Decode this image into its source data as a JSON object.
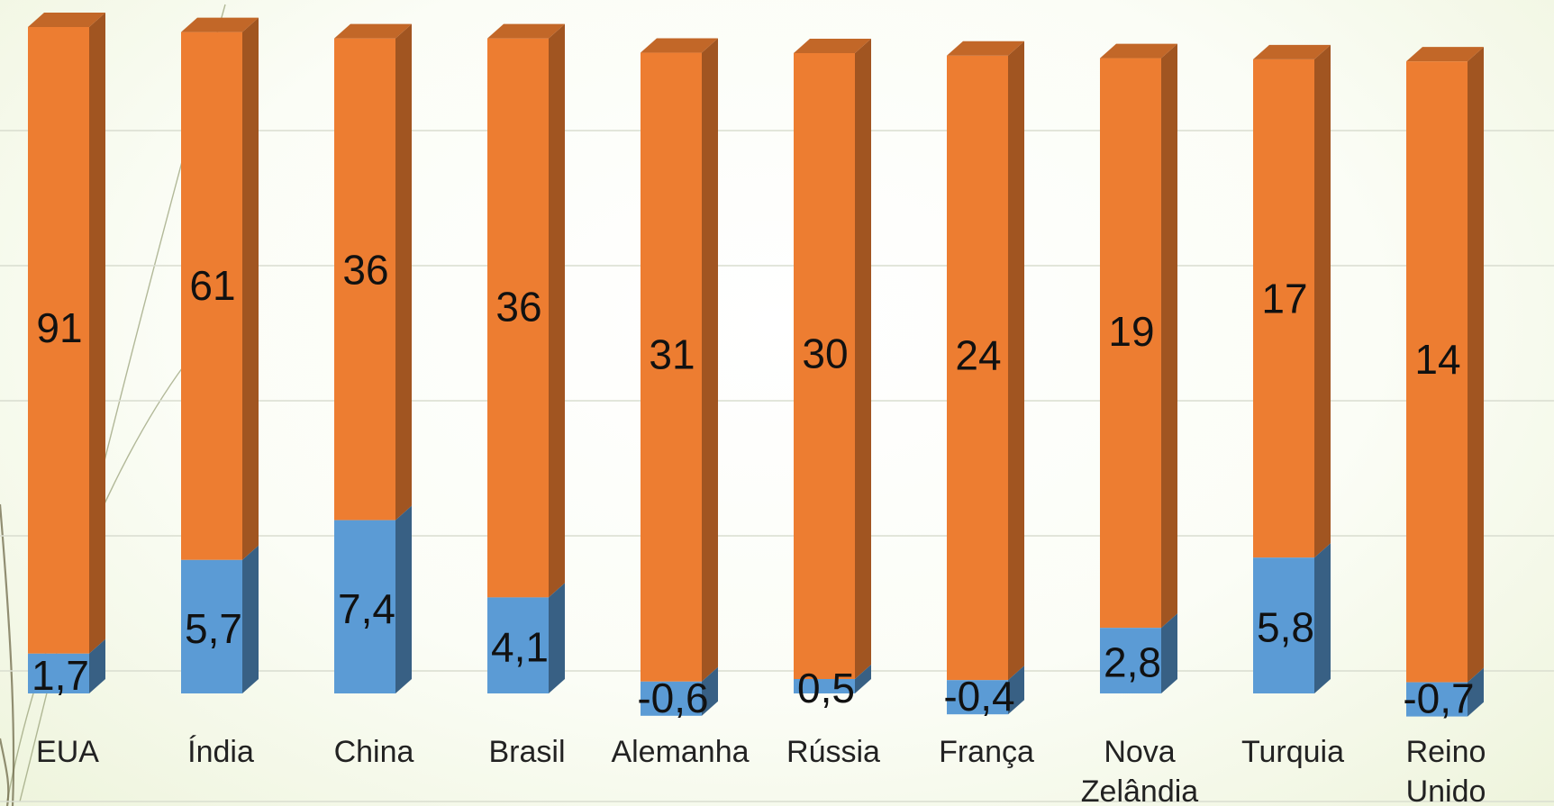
{
  "chart_data": {
    "type": "bar",
    "stacked": true,
    "style": "3d-column",
    "categories": [
      "EUA",
      "Índia",
      "China",
      "Brasil",
      "Alemanha",
      "Rússia",
      "França",
      "Nova Zelândia",
      "Turquia",
      "Reino Unido"
    ],
    "series": [
      {
        "values": [
          1.7,
          5.7,
          7.4,
          4.1,
          -0.6,
          0.5,
          -0.4,
          2.8,
          5.8,
          -0.7
        ],
        "labels": [
          "1,7",
          "5,7",
          "7,4",
          "4,1",
          "-0,6",
          "0,5",
          "-0,4",
          "2,8",
          "5,8",
          "-0,7"
        ],
        "color": "#5b9bd5"
      },
      {
        "values": [
          91,
          61,
          36,
          36,
          31,
          30,
          24,
          19,
          17,
          14
        ],
        "labels": [
          "91",
          "61",
          "36",
          "36",
          "31",
          "30",
          "24",
          "19",
          "17",
          "14"
        ],
        "color": "#ed7d31"
      }
    ],
    "grid": true,
    "legend": "none"
  }
}
